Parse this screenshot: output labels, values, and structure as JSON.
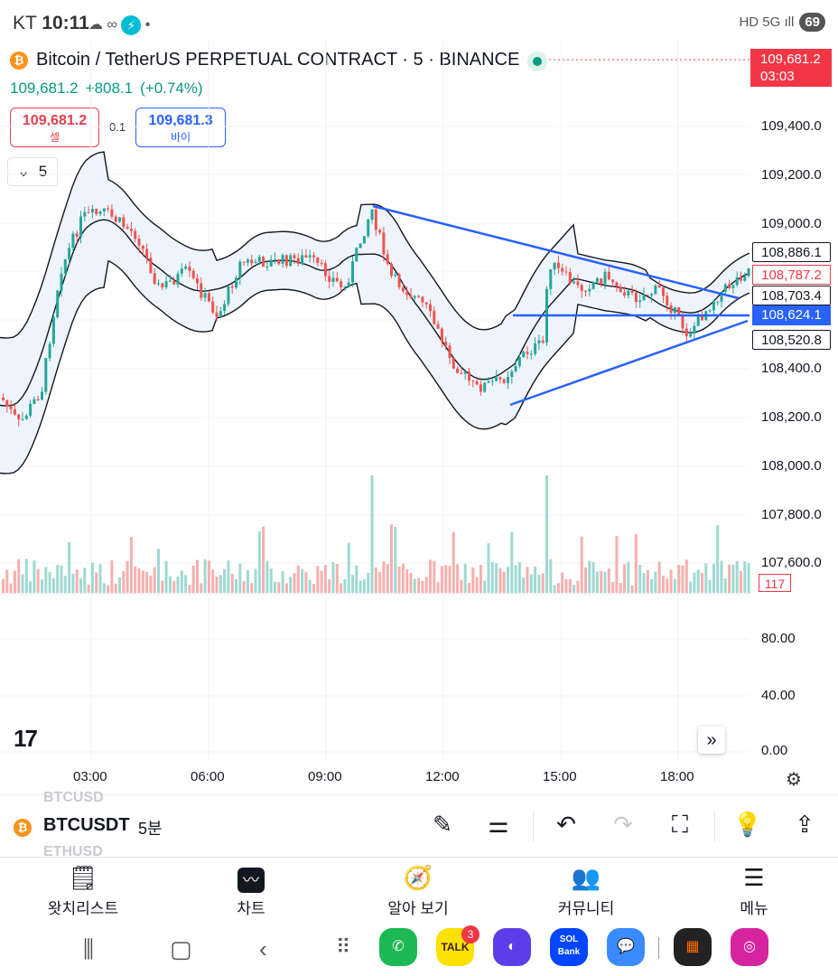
{
  "status": {
    "carrier": "KT",
    "time": "10:11",
    "icons": [
      "cloud-icon",
      "link-icon",
      "bolt-icon",
      "dot-icon"
    ],
    "right": [
      "HD",
      "5G",
      "signal-icon"
    ],
    "battery": "69"
  },
  "header": {
    "title": "Bitcoin / TetherUS PERPETUAL CONTRACT · 5 · BINANCE",
    "last": "109,681.2",
    "change": "+808.1",
    "change_pct": "(+0.74%)",
    "sell_price": "109,681.2",
    "sell_label": "셀",
    "spread": "0.1",
    "buy_price": "109,681.3",
    "buy_label": "바이",
    "collapse": "5"
  },
  "price_scale": {
    "current": "109,681.2",
    "countdown": "03:03",
    "ticks": [
      "109,400.0",
      "109,200.0",
      "109,000.0",
      "108,400.0",
      "108,200.0",
      "108,000.0",
      "107,800.0",
      "107,600.0"
    ],
    "labels": {
      "bb_upper": "108,886.1",
      "last": "108,787.2",
      "bb_basis": "108,703.4",
      "hline": "108,624.1",
      "bb_lower": "108,520.8"
    },
    "volume": "117",
    "osc_ticks": [
      "80.00",
      "40.00",
      "0.00"
    ]
  },
  "time_axis": [
    "03:00",
    "06:00",
    "09:00",
    "12:00",
    "15:00",
    "18:00"
  ],
  "colors": {
    "up": "#26a69a",
    "down": "#ef5350",
    "line": "#2962ff",
    "band": "#eef4fb"
  },
  "toolbar": {
    "symbol": "BTCUSDT",
    "interval": "5분",
    "ghost_prev": "BTCUSD",
    "ghost_next": "ETHUSD"
  },
  "nav": [
    {
      "label": "왓치리스트",
      "icon": "watchlist-icon"
    },
    {
      "label": "차트",
      "icon": "chart-icon"
    },
    {
      "label": "알아 보기",
      "icon": "compass-icon"
    },
    {
      "label": "커뮤니티",
      "icon": "community-icon"
    },
    {
      "label": "메뉴",
      "icon": "menu-icon"
    }
  ],
  "apps": {
    "talk": "TALK",
    "talk_badge": "3",
    "bank": "SOL Bank"
  }
}
